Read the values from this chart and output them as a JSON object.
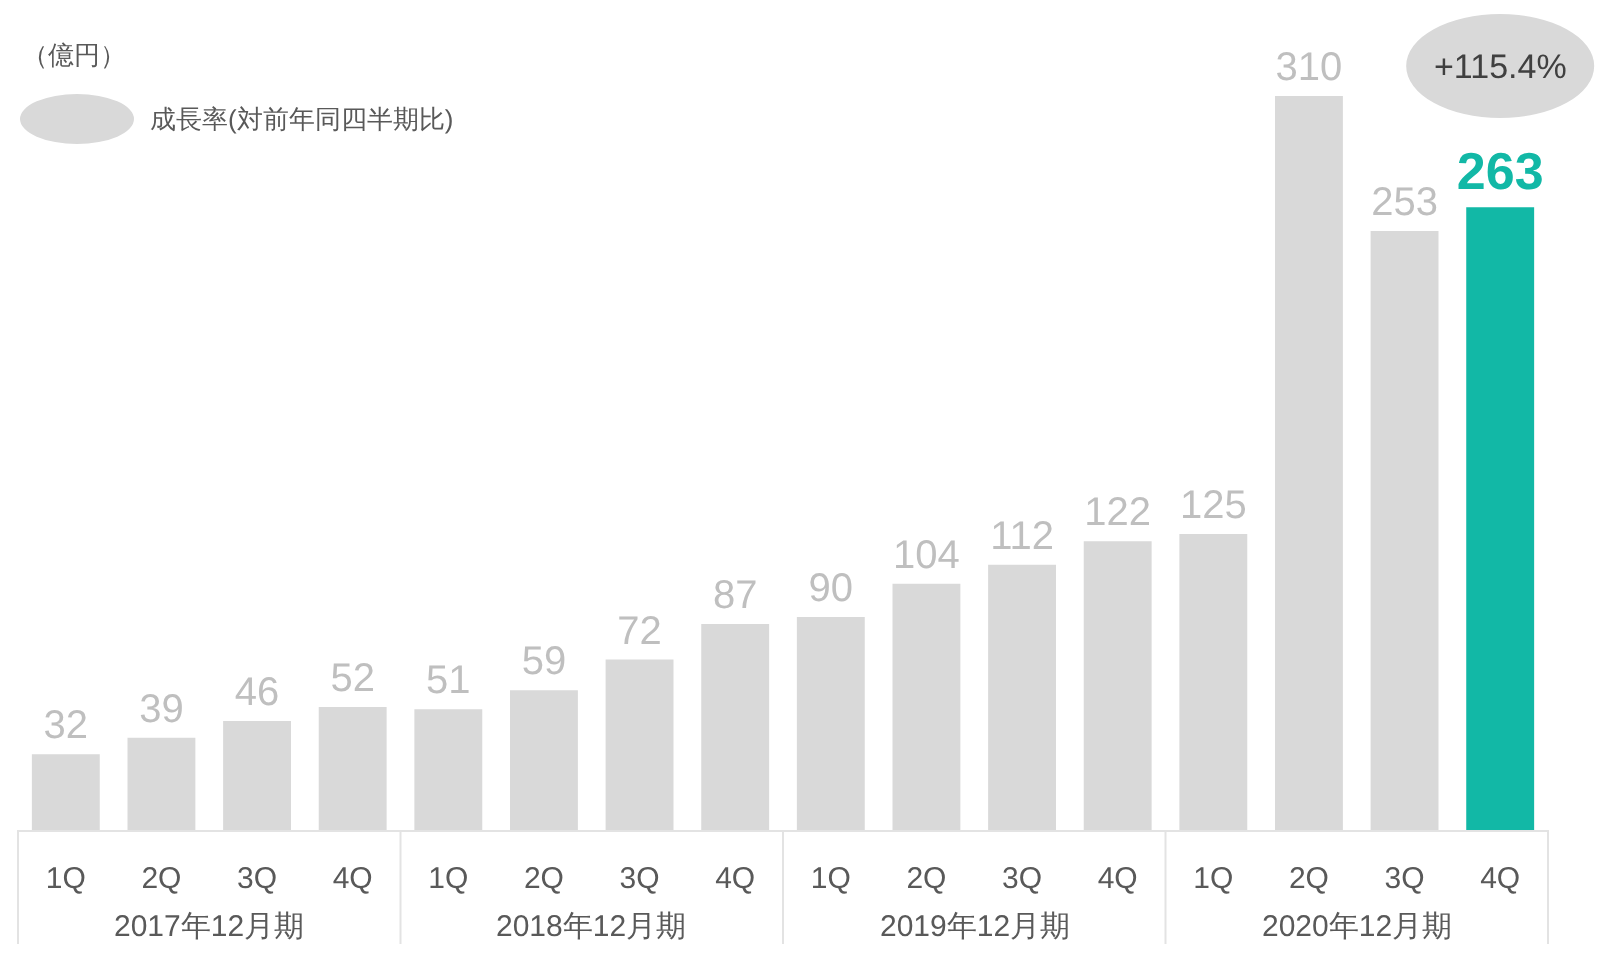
{
  "chart_data": {
    "type": "bar",
    "ylabel": "（億円）",
    "legend_title": "成長率(対前年同四半期比)",
    "categories": [
      "1Q",
      "2Q",
      "3Q",
      "4Q",
      "1Q",
      "2Q",
      "3Q",
      "4Q",
      "1Q",
      "2Q",
      "3Q",
      "4Q",
      "1Q",
      "2Q",
      "3Q",
      "4Q"
    ],
    "values": [
      32,
      39,
      46,
      52,
      51,
      59,
      72,
      87,
      90,
      104,
      112,
      122,
      125,
      310,
      253,
      263
    ],
    "colors": [
      "#d9d9d9",
      "#d9d9d9",
      "#d9d9d9",
      "#d9d9d9",
      "#d9d9d9",
      "#d9d9d9",
      "#d9d9d9",
      "#d9d9d9",
      "#d9d9d9",
      "#d9d9d9",
      "#d9d9d9",
      "#d9d9d9",
      "#d9d9d9",
      "#d9d9d9",
      "#d9d9d9",
      "#12b8a6"
    ],
    "data_labels": true,
    "annotations": [
      "+115.4%",
      "2017年12月期",
      "2018年12月期",
      "2019年12月期",
      "2020年12月期"
    ]
  }
}
